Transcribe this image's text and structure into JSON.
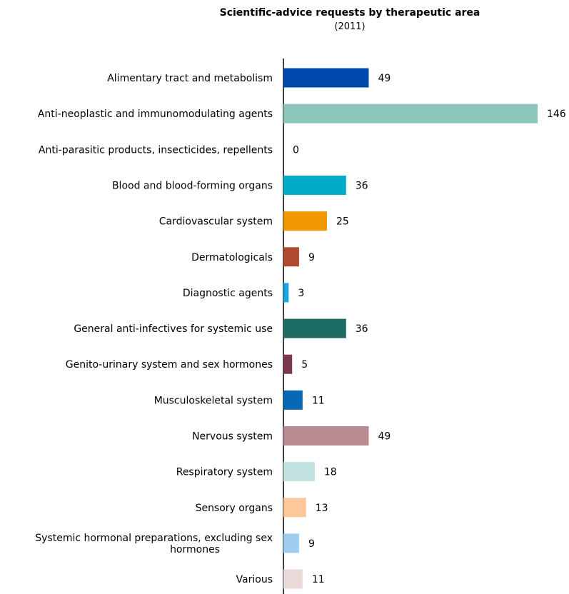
{
  "chart_data": {
    "type": "bar",
    "orientation": "horizontal",
    "title": "Scientific-advice requests by therapeutic area",
    "subtitle": "(2011)",
    "categories": [
      "Alimentary tract and metabolism",
      "Anti-neoplastic and immunomodulating agents",
      "Anti-parasitic products, insecticides, repellents",
      "Blood and blood-forming organs",
      "Cardiovascular system",
      "Dermatologicals",
      "Diagnostic agents",
      "General anti-infectives for systemic use",
      "Genito-urinary system and sex hormones",
      "Musculoskeletal system",
      "Nervous system",
      "Respiratory system",
      "Sensory organs",
      "Systemic hormonal preparations, excluding sex hormones",
      "Various"
    ],
    "category_lines": [
      [
        "Alimentary tract and metabolism"
      ],
      [
        "Anti-neoplastic and immunomodulating agents"
      ],
      [
        "Anti-parasitic products, insecticides, repellents"
      ],
      [
        "Blood and blood-forming organs"
      ],
      [
        "Cardiovascular system"
      ],
      [
        "Dermatologicals"
      ],
      [
        "Diagnostic agents"
      ],
      [
        "General anti-infectives for systemic use"
      ],
      [
        "Genito-urinary system and sex hormones"
      ],
      [
        "Musculoskeletal system"
      ],
      [
        "Nervous system"
      ],
      [
        "Respiratory system"
      ],
      [
        "Sensory organs"
      ],
      [
        "Systemic hormonal preparations, excluding sex",
        "hormones"
      ],
      [
        "Various"
      ]
    ],
    "values": [
      49,
      146,
      0,
      36,
      25,
      9,
      3,
      36,
      5,
      11,
      49,
      18,
      13,
      9,
      11
    ],
    "value_labels": [
      "49",
      "146",
      "0",
      "36",
      "25",
      "9",
      "3",
      "36",
      "5",
      "11",
      "49",
      "18",
      "13",
      "9",
      "11"
    ],
    "colors": [
      "#0047AB",
      "#8CC5BA",
      "#FFFFFF",
      "#00ACC8",
      "#F29700",
      "#B04A2F",
      "#15A6E3",
      "#1C6B62",
      "#7B3A4B",
      "#0769B4",
      "#B98A8F",
      "#C2E2DF",
      "#FDC899",
      "#9ECDED",
      "#EAD9D9"
    ],
    "xlim": [
      0,
      146
    ],
    "grid": false,
    "legend": "none"
  }
}
